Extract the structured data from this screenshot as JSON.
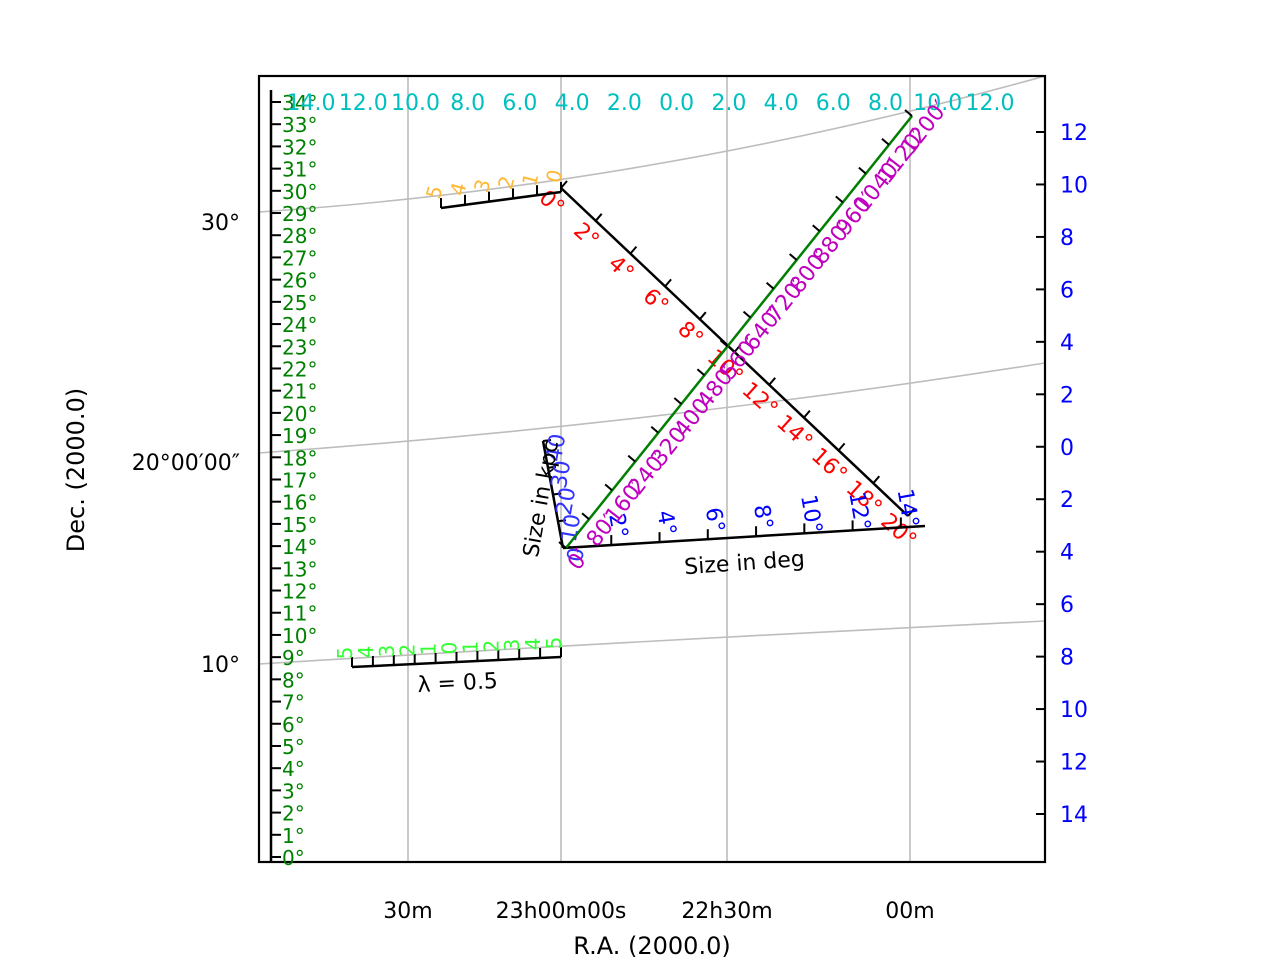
{
  "chart_data": {
    "type": "line",
    "title": "",
    "xlabel": "R.A. (2000.0)",
    "ylabel": "Dec. (2000.0)",
    "grid": true,
    "x_ticks": [
      "30m",
      "23h00m00s",
      "22h30m",
      "00m"
    ],
    "y_ticks": [
      "10°",
      "20°00′00″",
      "30°"
    ],
    "colors": {
      "grid": "#bdbdbd",
      "frame": "#000000",
      "dec_inset": "#008000",
      "top_inset": "#00bfbf",
      "right_inset": "#0000ff",
      "ruler_deg": "#ff0000",
      "ruler_arcmin": "#bf00bf",
      "ruler_kpc": "#3333ff",
      "ruler_green_line": "#007f00",
      "lambda_ruler": "#33ff33",
      "orange_ruler": "#ffb833"
    },
    "dec_inset_labels": [
      "0°",
      "1°",
      "2°",
      "3°",
      "4°",
      "5°",
      "6°",
      "7°",
      "8°",
      "9°",
      "10°",
      "11°",
      "12°",
      "13°",
      "14°",
      "15°",
      "16°",
      "17°",
      "18°",
      "19°",
      "20°",
      "21°",
      "22°",
      "23°",
      "24°",
      "25°",
      "26°",
      "27°",
      "28°",
      "29°",
      "30°",
      "31°",
      "32°",
      "33°",
      "34°"
    ],
    "top_inset_labels": [
      "14.0",
      "12.0",
      "10.0",
      "8.0",
      "6.0",
      "4.0",
      "2.0",
      "0.0",
      "2.0",
      "4.0",
      "6.0",
      "8.0",
      "10.0",
      "12.0"
    ],
    "right_inset_labels": [
      "12",
      "10",
      "8",
      "6",
      "4",
      "2",
      "0",
      "2",
      "4",
      "6",
      "8",
      "10",
      "12",
      "14"
    ],
    "ruler_deg": {
      "name": "Size in deg",
      "labels": [
        "2°",
        "4°",
        "6°",
        "8°",
        "10°",
        "12°",
        "14°"
      ]
    },
    "ruler_arcmin_labels": [
      "0′",
      "80′",
      "160′",
      "240′",
      "320′",
      "400′",
      "480′",
      "560′",
      "640′",
      "720′",
      "800′",
      "880′",
      "960′",
      "1040′",
      "1120′",
      "1200′"
    ],
    "ruler_kpc": {
      "name": "Size in kpc",
      "labels": [
        "0",
        "10",
        "20",
        "30",
        "40"
      ]
    },
    "ruler_diagonal_labels": [
      "0°",
      "2°",
      "4°",
      "6°",
      "8°",
      "10°",
      "12°",
      "14°",
      "16°",
      "18°",
      "20°"
    ],
    "lambda_ruler": {
      "label": "λ = 0.5",
      "labels": [
        "5",
        "4",
        "3",
        "2",
        "1",
        "0",
        "1",
        "2",
        "3",
        "4",
        "5"
      ]
    },
    "orange_ruler_labels": [
      "5",
      "4",
      "3",
      "2",
      "1",
      "0"
    ]
  }
}
